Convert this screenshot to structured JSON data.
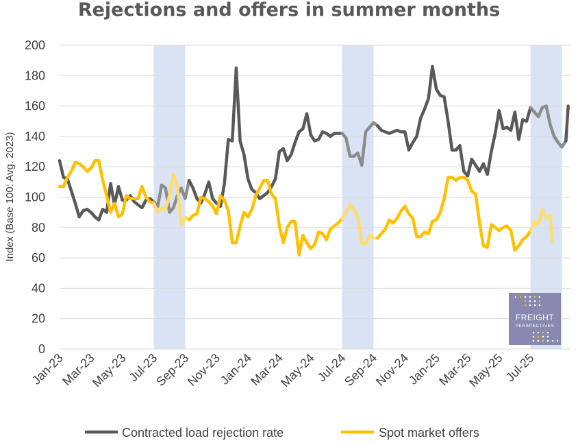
{
  "chart_data": {
    "type": "line",
    "title": "Rejections and offers in summer months",
    "ylabel": "Index (Base 100: Avg. 2023)",
    "xlabel": "",
    "ylim": [
      0,
      200
    ],
    "yticks": [
      0,
      20,
      40,
      60,
      80,
      100,
      120,
      140,
      160,
      180,
      200
    ],
    "grid": true,
    "x_start": "2023-01",
    "x_end": "2025-09",
    "xtick_labels": [
      "Jan-23",
      "Mar-23",
      "May-23",
      "Jul-23",
      "Sep-23",
      "Nov-23",
      "Jan-24",
      "Mar-24",
      "May-24",
      "Jul-24",
      "Sep-24",
      "Nov-24",
      "Jan-25",
      "Mar-25",
      "May-25",
      "Jul-25"
    ],
    "xtick_months": [
      0,
      2,
      4,
      6,
      8,
      10,
      12,
      14,
      16,
      18,
      20,
      22,
      24,
      26,
      28,
      30
    ],
    "shaded_periods": [
      {
        "label": "Summer 2023",
        "start_month": 6,
        "end_month": 8
      },
      {
        "label": "Summer 2024",
        "start_month": 18,
        "end_month": 20
      },
      {
        "label": "Summer 2025",
        "start_month": 30,
        "end_month": 32
      }
    ],
    "series": [
      {
        "name": "Contracted load rejection rate",
        "color": "#595959",
        "highlight_color": "#8c8c8c",
        "points": [
          [
            0,
            124
          ],
          [
            0.25,
            113
          ],
          [
            0.5,
            112
          ],
          [
            0.75,
            104
          ],
          [
            1,
            96
          ],
          [
            1.25,
            87
          ],
          [
            1.5,
            91
          ],
          [
            1.75,
            92
          ],
          [
            2,
            90
          ],
          [
            2.25,
            87
          ],
          [
            2.5,
            85
          ],
          [
            2.75,
            92
          ],
          [
            3,
            90
          ],
          [
            3.25,
            109
          ],
          [
            3.5,
            95
          ],
          [
            3.75,
            107
          ],
          [
            4,
            98
          ],
          [
            4.25,
            98
          ],
          [
            4.5,
            101
          ],
          [
            4.75,
            97
          ],
          [
            5,
            95
          ],
          [
            5.25,
            93
          ],
          [
            5.5,
            98
          ],
          [
            5.75,
            99
          ],
          [
            6,
            97
          ],
          [
            6.25,
            94
          ],
          [
            6.5,
            108
          ],
          [
            6.75,
            106
          ],
          [
            7,
            90
          ],
          [
            7.25,
            93
          ],
          [
            7.5,
            101
          ],
          [
            7.75,
            106
          ],
          [
            8,
            99
          ],
          [
            8.25,
            111
          ],
          [
            8.5,
            106
          ],
          [
            8.75,
            99
          ],
          [
            9,
            96
          ],
          [
            9.25,
            102
          ],
          [
            9.5,
            110
          ],
          [
            9.75,
            99
          ],
          [
            10,
            96
          ],
          [
            10.25,
            94
          ],
          [
            10.5,
            109
          ],
          [
            10.75,
            138
          ],
          [
            11,
            137
          ],
          [
            11.25,
            185
          ],
          [
            11.5,
            137
          ],
          [
            11.75,
            128
          ],
          [
            12,
            112
          ],
          [
            12.25,
            105
          ],
          [
            12.5,
            103
          ],
          [
            12.75,
            99
          ],
          [
            13,
            101
          ],
          [
            13.25,
            103
          ],
          [
            13.5,
            107
          ],
          [
            13.75,
            112
          ],
          [
            14,
            130
          ],
          [
            14.25,
            132
          ],
          [
            14.5,
            124
          ],
          [
            14.75,
            128
          ],
          [
            15,
            136
          ],
          [
            15.25,
            143
          ],
          [
            15.5,
            145
          ],
          [
            15.75,
            155
          ],
          [
            16,
            141
          ],
          [
            16.25,
            137
          ],
          [
            16.5,
            138
          ],
          [
            16.75,
            143
          ],
          [
            17,
            142
          ],
          [
            17.25,
            140
          ],
          [
            17.5,
            142
          ],
          [
            17.75,
            142
          ],
          [
            18,
            142
          ],
          [
            18.25,
            139
          ],
          [
            18.5,
            127
          ],
          [
            18.75,
            127
          ],
          [
            19,
            129
          ],
          [
            19.25,
            121
          ],
          [
            19.5,
            143
          ],
          [
            19.75,
            146
          ],
          [
            20,
            149
          ],
          [
            20.25,
            147
          ],
          [
            20.5,
            144
          ],
          [
            20.75,
            143
          ],
          [
            21,
            142
          ],
          [
            21.25,
            143
          ],
          [
            21.5,
            144
          ],
          [
            21.75,
            143
          ],
          [
            22,
            143
          ],
          [
            22.25,
            131
          ],
          [
            22.5,
            136
          ],
          [
            22.75,
            140
          ],
          [
            23,
            152
          ],
          [
            23.25,
            158
          ],
          [
            23.5,
            165
          ],
          [
            23.75,
            186
          ],
          [
            24,
            171
          ],
          [
            24.25,
            167
          ],
          [
            24.5,
            166
          ],
          [
            24.75,
            150
          ],
          [
            25,
            131
          ],
          [
            25.25,
            131
          ],
          [
            25.5,
            134
          ],
          [
            25.75,
            117
          ],
          [
            26,
            114
          ],
          [
            26.25,
            125
          ],
          [
            26.5,
            121
          ],
          [
            26.75,
            117
          ],
          [
            27,
            122
          ],
          [
            27.25,
            115
          ],
          [
            27.5,
            130
          ],
          [
            27.75,
            142
          ],
          [
            28,
            157
          ],
          [
            28.25,
            145
          ],
          [
            28.5,
            146
          ],
          [
            28.75,
            144
          ],
          [
            29,
            156
          ],
          [
            29.25,
            138
          ],
          [
            29.5,
            151
          ],
          [
            29.75,
            150
          ],
          [
            30,
            159
          ],
          [
            30.25,
            156
          ],
          [
            30.5,
            153
          ],
          [
            30.75,
            159
          ],
          [
            31,
            160
          ],
          [
            31.25,
            148
          ],
          [
            31.5,
            140
          ],
          [
            31.75,
            136
          ],
          [
            32,
            133
          ],
          [
            32.25,
            137
          ],
          [
            32.4,
            160
          ]
        ]
      },
      {
        "name": "Spot market offers",
        "color": "#ffc000",
        "highlight_color": "#ffdd6e",
        "points": [
          [
            0,
            107
          ],
          [
            0.25,
            107
          ],
          [
            0.5,
            113
          ],
          [
            0.75,
            117
          ],
          [
            1,
            123
          ],
          [
            1.25,
            122
          ],
          [
            1.5,
            120
          ],
          [
            1.75,
            117
          ],
          [
            2,
            119
          ],
          [
            2.25,
            124
          ],
          [
            2.5,
            124
          ],
          [
            2.75,
            111
          ],
          [
            3,
            101
          ],
          [
            3.25,
            90
          ],
          [
            3.5,
            96
          ],
          [
            3.75,
            87
          ],
          [
            4,
            89
          ],
          [
            4.25,
            101
          ],
          [
            4.5,
            99
          ],
          [
            4.75,
            99
          ],
          [
            5,
            99
          ],
          [
            5.25,
            107
          ],
          [
            5.5,
            100
          ],
          [
            5.75,
            97
          ],
          [
            6,
            96
          ],
          [
            6.25,
            90
          ],
          [
            6.5,
            93
          ],
          [
            6.75,
            92
          ],
          [
            7,
            101
          ],
          [
            7.25,
            115
          ],
          [
            7.5,
            107
          ],
          [
            7.75,
            82
          ],
          [
            8,
            87
          ],
          [
            8.25,
            85
          ],
          [
            8.5,
            88
          ],
          [
            8.75,
            89
          ],
          [
            9,
            100
          ],
          [
            9.25,
            99
          ],
          [
            9.5,
            97
          ],
          [
            9.75,
            94
          ],
          [
            10,
            89
          ],
          [
            10.25,
            101
          ],
          [
            10.5,
            98
          ],
          [
            10.75,
            91
          ],
          [
            11,
            70
          ],
          [
            11.25,
            70
          ],
          [
            11.5,
            81
          ],
          [
            11.75,
            90
          ],
          [
            12,
            87
          ],
          [
            12.25,
            92
          ],
          [
            12.5,
            101
          ],
          [
            12.75,
            106
          ],
          [
            13,
            111
          ],
          [
            13.25,
            111
          ],
          [
            13.5,
            102
          ],
          [
            13.75,
            99
          ],
          [
            14,
            81
          ],
          [
            14.25,
            70
          ],
          [
            14.5,
            80
          ],
          [
            14.75,
            84
          ],
          [
            15,
            84
          ],
          [
            15.25,
            62
          ],
          [
            15.5,
            75
          ],
          [
            15.75,
            70
          ],
          [
            16,
            66
          ],
          [
            16.25,
            69
          ],
          [
            16.5,
            77
          ],
          [
            16.75,
            76
          ],
          [
            17,
            72
          ],
          [
            17.25,
            79
          ],
          [
            17.5,
            81
          ],
          [
            17.75,
            83
          ],
          [
            18,
            86
          ],
          [
            18.25,
            90
          ],
          [
            18.5,
            95
          ],
          [
            18.75,
            92
          ],
          [
            19,
            87
          ],
          [
            19.25,
            70
          ],
          [
            19.5,
            69
          ],
          [
            19.75,
            75
          ],
          [
            20,
            73
          ],
          [
            20.25,
            73
          ],
          [
            20.5,
            76
          ],
          [
            20.75,
            79
          ],
          [
            21,
            85
          ],
          [
            21.25,
            83
          ],
          [
            21.5,
            86
          ],
          [
            21.75,
            91
          ],
          [
            22,
            94
          ],
          [
            22.25,
            89
          ],
          [
            22.5,
            86
          ],
          [
            22.75,
            74
          ],
          [
            23,
            74
          ],
          [
            23.25,
            77
          ],
          [
            23.5,
            76
          ],
          [
            23.75,
            84
          ],
          [
            24,
            85
          ],
          [
            24.25,
            90
          ],
          [
            24.5,
            99
          ],
          [
            24.75,
            113
          ],
          [
            25,
            113
          ],
          [
            25.25,
            111
          ],
          [
            25.5,
            113
          ],
          [
            25.75,
            113
          ],
          [
            26,
            111
          ],
          [
            26.25,
            104
          ],
          [
            26.5,
            102
          ],
          [
            26.75,
            83
          ],
          [
            27,
            68
          ],
          [
            27.25,
            67
          ],
          [
            27.5,
            82
          ],
          [
            27.75,
            80
          ],
          [
            28,
            78
          ],
          [
            28.25,
            80
          ],
          [
            28.5,
            81
          ],
          [
            28.75,
            78
          ],
          [
            29,
            65
          ],
          [
            29.25,
            68
          ],
          [
            29.5,
            72
          ],
          [
            29.75,
            74
          ],
          [
            30,
            78
          ],
          [
            30.25,
            84
          ],
          [
            30.5,
            82
          ],
          [
            30.75,
            92
          ],
          [
            31,
            86
          ],
          [
            31.25,
            88
          ],
          [
            31.4,
            70
          ]
        ]
      }
    ],
    "logo": {
      "line1": "FREIGHT",
      "line2": "PERSPECTIVES",
      "bg_color": "#8888b0"
    }
  }
}
